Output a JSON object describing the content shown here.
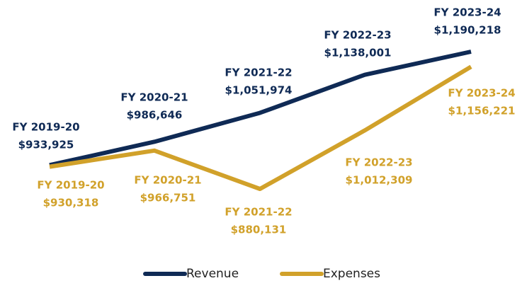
{
  "chart_data": {
    "type": "line",
    "categories": [
      "FY 2019-20",
      "FY 2020-21",
      "FY 2021-22",
      "FY 2022-23",
      "FY 2023-24"
    ],
    "series": [
      {
        "name": "Revenue",
        "color": "#0f2a55",
        "values": [
          933925,
          986646,
          1051974,
          1138001,
          1190218
        ],
        "value_labels": [
          "$933,925",
          "$986,646",
          "$1,051,974",
          "$1,138,001",
          "$1,190,218"
        ]
      },
      {
        "name": "Expenses",
        "color": "#d1a12a",
        "values": [
          930318,
          966751,
          880131,
          1012309,
          1156221
        ],
        "value_labels": [
          "$930,318",
          "$966,751",
          "$880,131",
          "$1,012,309",
          "$1,156,221"
        ]
      }
    ]
  }
}
